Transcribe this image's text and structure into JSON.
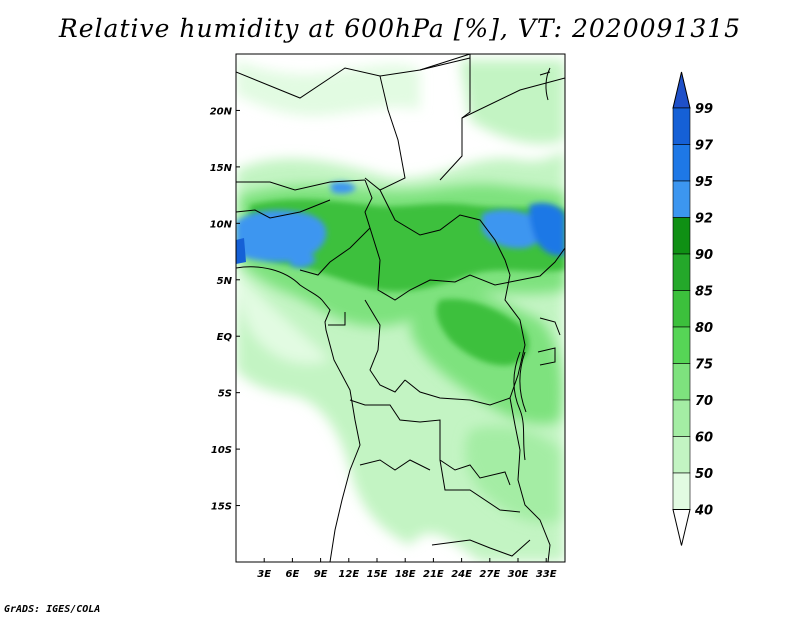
{
  "title": "Relative humidity at 600hPa [%], VT: 2020091315",
  "credit": "GrADS: IGES/COLA",
  "map": {
    "lon_ticks": [
      "3E",
      "6E",
      "9E",
      "12E",
      "15E",
      "18E",
      "21E",
      "24E",
      "27E",
      "30E",
      "33E"
    ],
    "lat_ticks": [
      "20N",
      "15N",
      "10N",
      "5N",
      "EQ",
      "5S",
      "10S",
      "15S"
    ],
    "lon_range": [
      0,
      35
    ],
    "lat_range": [
      -20,
      25
    ]
  },
  "colorbar": {
    "levels": [
      "99",
      "97",
      "95",
      "92",
      "90",
      "85",
      "80",
      "75",
      "70",
      "60",
      "50",
      "40"
    ],
    "colors": [
      "#1560d6",
      "#1e78e6",
      "#3c96f0",
      "#0f9014",
      "#24a82a",
      "#3cc03c",
      "#56d556",
      "#7ee27e",
      "#a4eda4",
      "#c3f4c3",
      "#e2fbe2",
      "#ffffff"
    ],
    "top_arrow_color": "#1f50c8"
  },
  "colors": {
    "background": "#ffffff",
    "borders": "#000000"
  }
}
